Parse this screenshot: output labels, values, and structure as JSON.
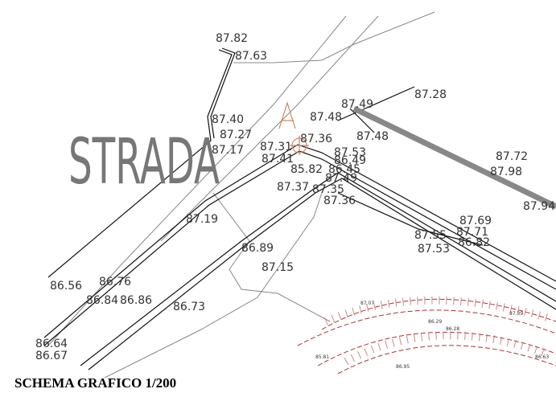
{
  "map": {
    "title": "STRADA",
    "caption": "SCHEMA GRAFICO 1/200",
    "elevations": [
      "87.82",
      "87.63",
      "87.40",
      "87.27",
      "87.17",
      "87.31",
      "87.41",
      "87.36",
      "87.48",
      "87.49",
      "87.48",
      "87.28",
      "87.53",
      "86.49",
      "85.82",
      "86.45",
      "87.49",
      "87.37",
      "87.35",
      "87.36",
      "87.72",
      "87.98",
      "87.94",
      "87.69",
      "87.71",
      "87.55",
      "86.82",
      "87.53",
      "87.19",
      "86.89",
      "87.15",
      "86.56",
      "86.76",
      "86.84",
      "86.86",
      "86.73",
      "86.64",
      "86.67"
    ],
    "small_elevations": [
      "87.07",
      "86.29",
      "86.28",
      "87.39",
      "85.81",
      "86.95",
      "86.63"
    ]
  }
}
